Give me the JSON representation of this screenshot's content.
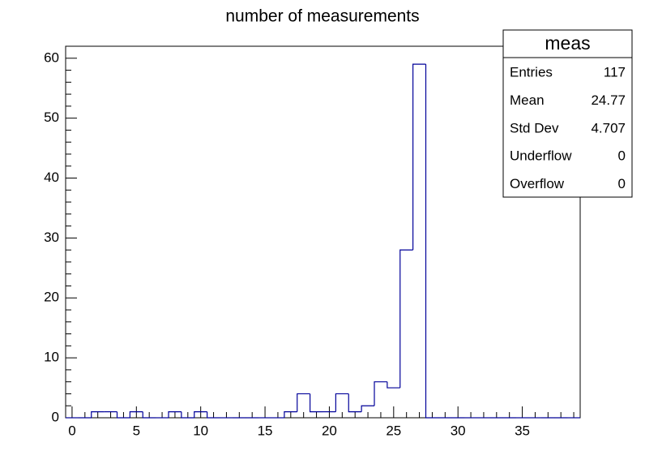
{
  "chart_data": {
    "type": "histogram",
    "title": "number of measurements",
    "bins": [
      -0.5,
      0.5,
      1.5,
      2.5,
      3.5,
      4.5,
      5.5,
      6.5,
      7.5,
      8.5,
      9.5,
      10.5,
      11.5,
      12.5,
      13.5,
      14.5,
      15.5,
      16.5,
      17.5,
      18.5,
      19.5,
      20.5,
      21.5,
      22.5,
      23.5,
      24.5,
      25.5,
      26.5,
      27.5,
      28.5,
      29.5,
      30.5,
      31.5,
      32.5,
      33.5,
      34.5,
      35.5,
      36.5,
      37.5,
      38.5,
      39.5
    ],
    "counts": [
      0,
      0,
      1,
      1,
      0,
      1,
      0,
      0,
      1,
      0,
      1,
      0,
      0,
      0,
      0,
      0,
      0,
      1,
      4,
      1,
      1,
      4,
      1,
      2,
      6,
      5,
      28,
      59,
      0,
      0,
      0,
      0,
      0,
      0,
      0,
      0,
      0,
      0,
      0,
      0
    ],
    "color": "#000099",
    "xlim": [
      -0.5,
      39.5
    ],
    "xticks": [
      0,
      5,
      10,
      15,
      20,
      25,
      30,
      35
    ],
    "ylim": [
      0,
      62
    ],
    "yticks": [
      0,
      10,
      20,
      30,
      40,
      50,
      60
    ],
    "stats": {
      "title": "meas",
      "rows": [
        {
          "label": "Entries",
          "value": 117
        },
        {
          "label": "Mean",
          "value": 24.77
        },
        {
          "label": "Std Dev",
          "value": 4.707
        },
        {
          "label": "Underflow",
          "value": 0
        },
        {
          "label": "Overflow",
          "value": 0
        }
      ]
    }
  }
}
